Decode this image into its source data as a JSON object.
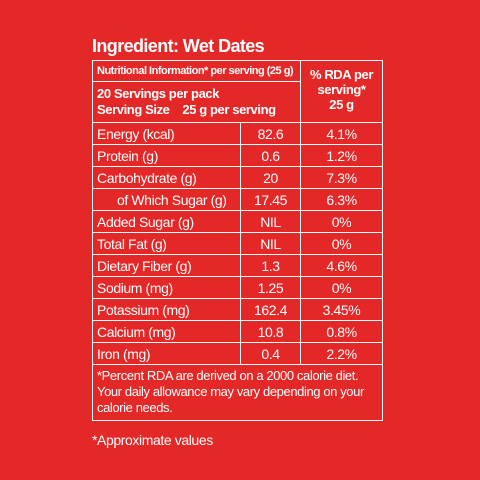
{
  "title": "Ingredient: Wet Dates",
  "table": {
    "header": {
      "info": "Nutritional Information* per serving (25 g)",
      "servings": "20 Servings per pack",
      "serving_size_label": "Serving Size",
      "serving_size": "25 g per serving",
      "rda_line1": "% RDA per",
      "rda_line2": "serving*",
      "rda_line3": "25 g"
    },
    "rows": [
      [
        "Energy (kcal)",
        "82.6",
        "4.1%"
      ],
      [
        "Protein (g)",
        "0.6",
        "1.2%"
      ],
      [
        "Carbohydrate (g)",
        "20",
        "7.3%"
      ],
      [
        "of Which Sugar (g)",
        "17.45",
        "6.3%"
      ],
      [
        "Added Sugar (g)",
        "NIL",
        "0%"
      ],
      [
        "Total Fat (g)",
        "NIL",
        "0%"
      ],
      [
        "Dietary Fiber (g)",
        "1.3",
        "4.6%"
      ],
      [
        "Sodium (mg)",
        "1.25",
        "0%"
      ],
      [
        "Potassium (mg)",
        "162.4",
        "3.45%"
      ],
      [
        "Calcium (mg)",
        "10.8",
        "0.8%"
      ],
      [
        "Iron (mg)",
        "0.4",
        "2.2%"
      ]
    ],
    "footnote": "*Percent RDA are derived on a 2000 calorie diet. Your daily allowance may vary depending on your calorie needs."
  },
  "note": "*Approximate values"
}
